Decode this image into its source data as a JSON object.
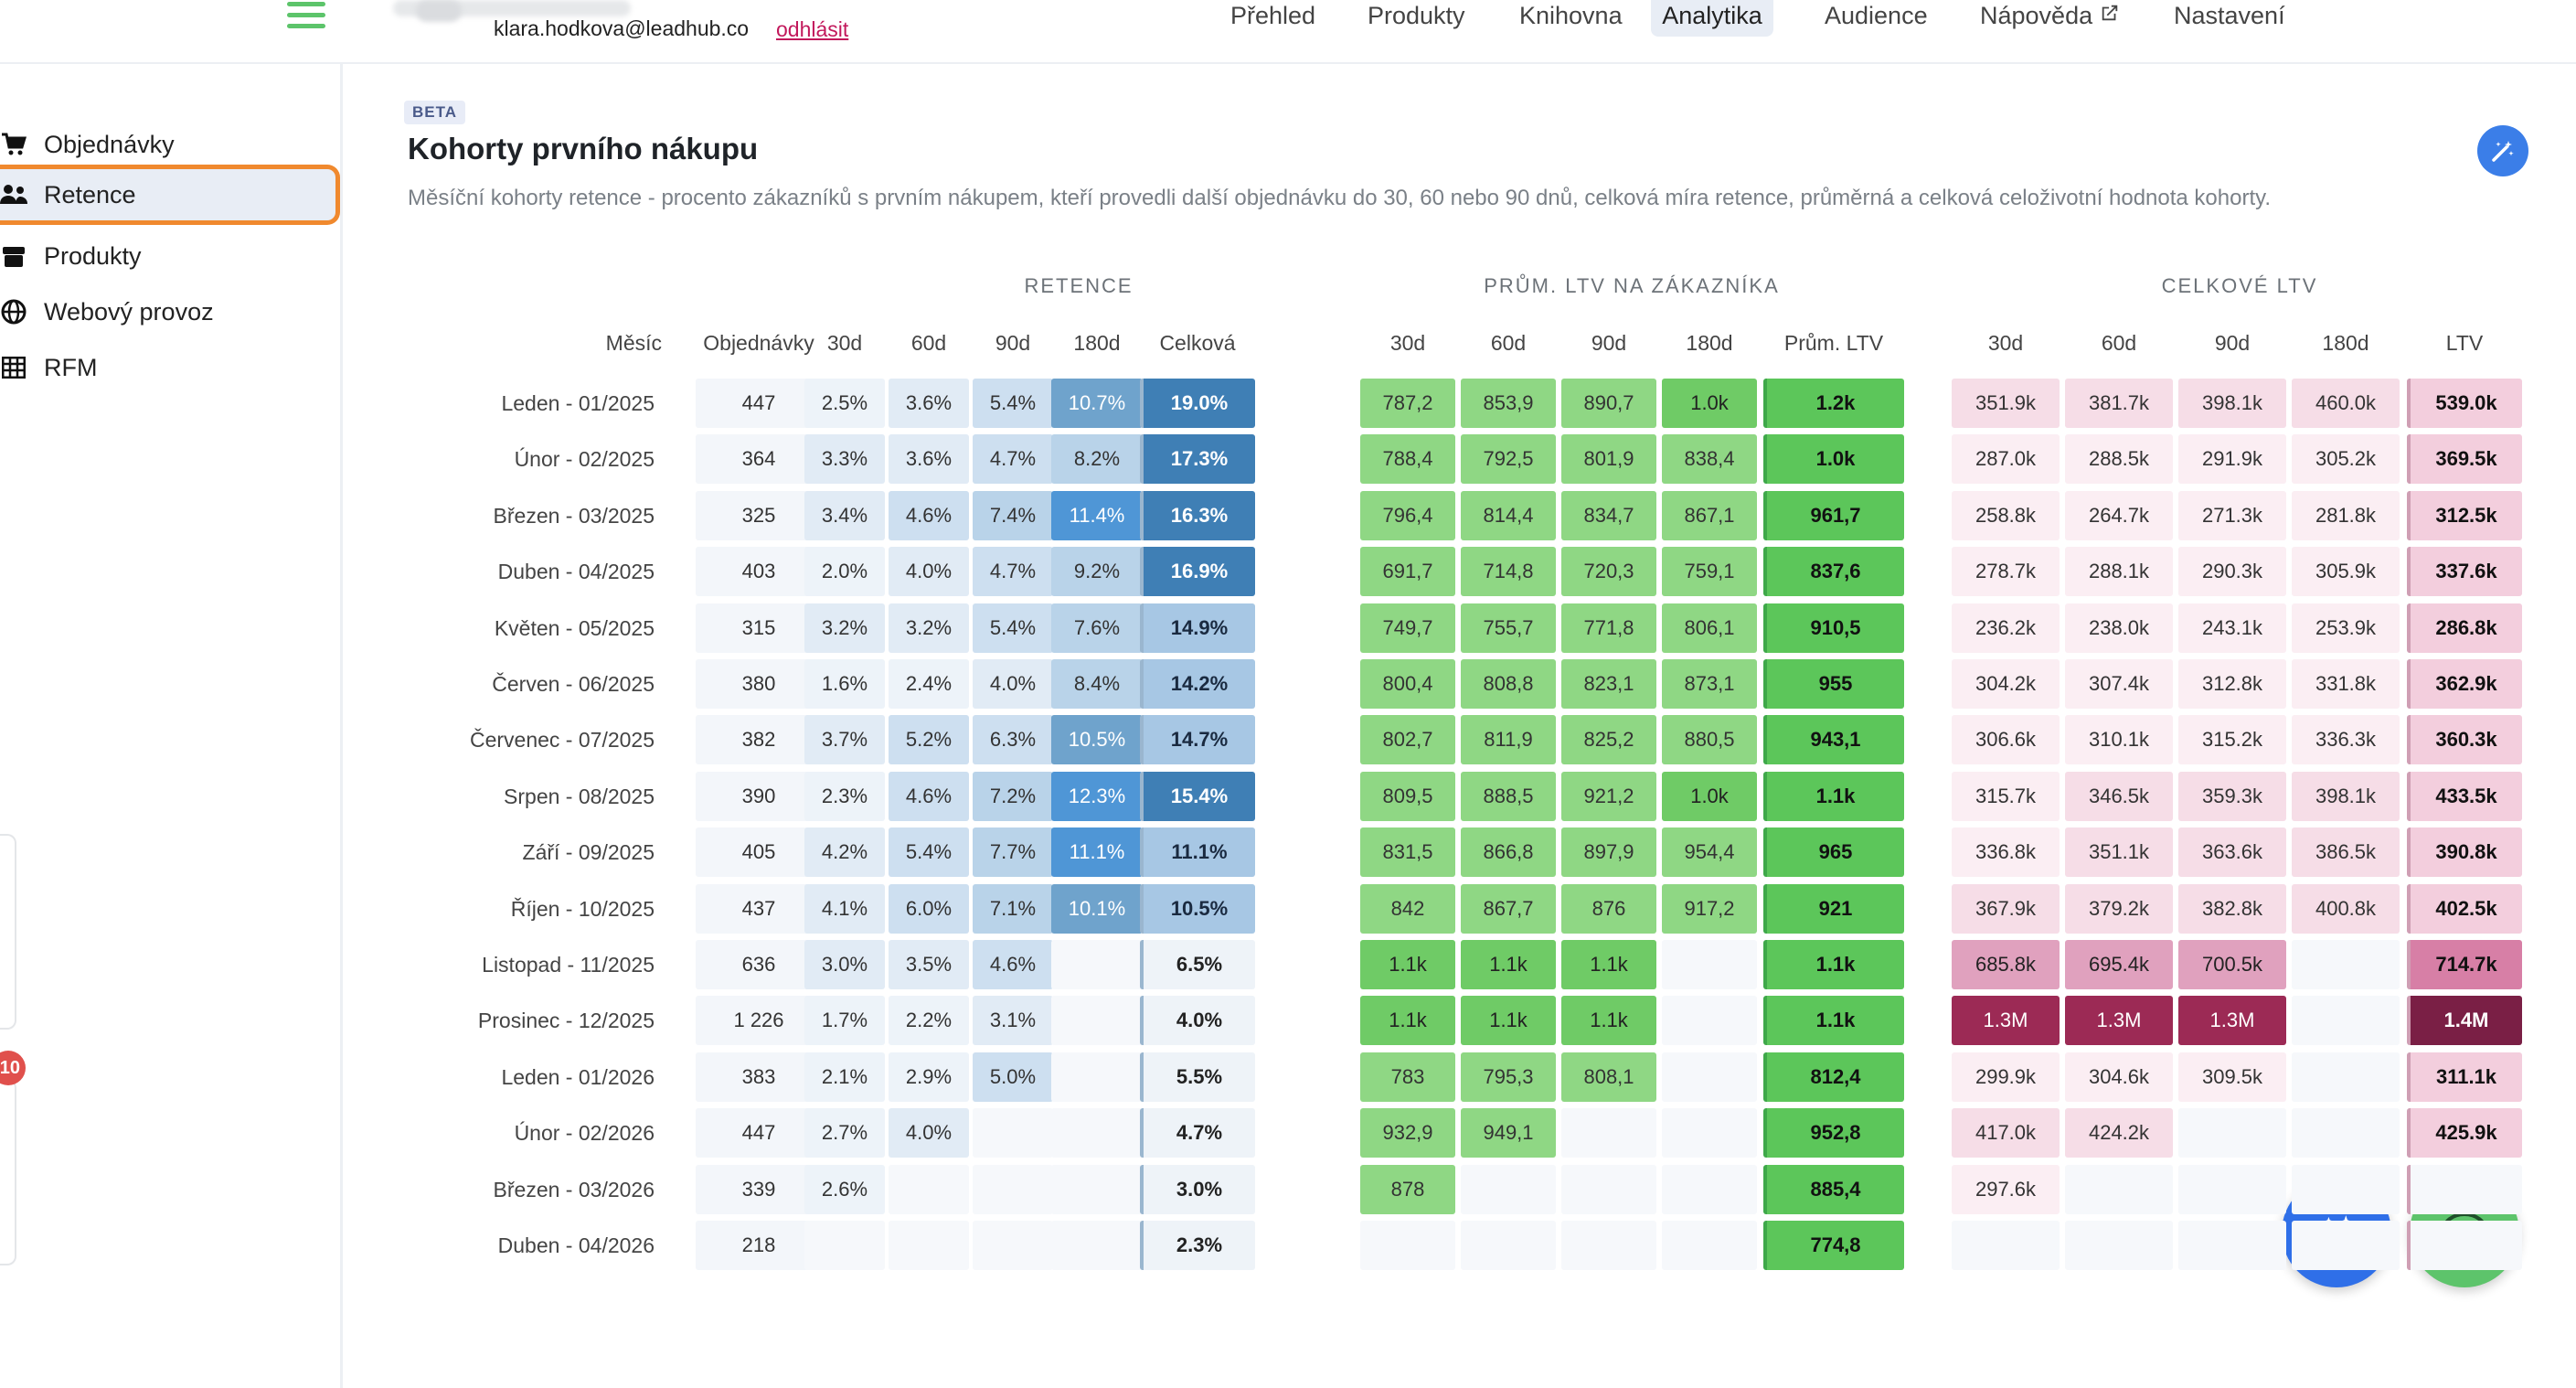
{
  "header": {
    "email": "klara.hodkova@leadhub.co",
    "logout": "odhlásit",
    "nav": [
      "Přehled",
      "Produkty",
      "Knihovna",
      "Analytika",
      "Audience",
      "Nápověda",
      "Nastavení"
    ],
    "active_nav": "Analytika"
  },
  "sidebar": {
    "items": [
      {
        "label": "Objednávky",
        "icon": "cart-icon"
      },
      {
        "label": "Retence",
        "icon": "users-icon"
      },
      {
        "label": "Produkty",
        "icon": "box-icon"
      },
      {
        "label": "Webový provoz",
        "icon": "globe-icon"
      },
      {
        "label": "RFM",
        "icon": "grid-icon"
      }
    ],
    "active": "Retence",
    "notification_count": "10"
  },
  "page": {
    "badge": "BETA",
    "title": "Kohorty prvního nákupu",
    "description": "Měsíční kohorty retence - procento zákazníků s prvním nákupem, kteří provedli další objednávku do 30, 60 nebo 90 dnů, celková míra retence, průměrná a celková celoživotní hodnota kohorty."
  },
  "table": {
    "groups": [
      "RETENCE",
      "PRŮM. LTV NA ZÁKAZNÍKA",
      "CELKOVÉ LTV"
    ],
    "headers": {
      "month": "Měsíc",
      "orders": "Objednávky",
      "retention": [
        "30d",
        "60d",
        "90d",
        "180d",
        "Celková"
      ],
      "avg_ltv": [
        "30d",
        "60d",
        "90d",
        "180d",
        "Prům. LTV"
      ],
      "total_ltv": [
        "30d",
        "60d",
        "90d",
        "180d",
        "LTV"
      ]
    },
    "rows": [
      {
        "month": "Leden - 01/2025",
        "orders": "447",
        "ret": [
          "2.5%",
          "3.6%",
          "5.4%",
          "10.7%",
          "19.0%"
        ],
        "avg": [
          "787,2",
          "853,9",
          "890,7",
          "1.0k",
          "1.2k"
        ],
        "tot": [
          "351.9k",
          "381.7k",
          "398.1k",
          "460.0k",
          "539.0k"
        ]
      },
      {
        "month": "Únor - 02/2025",
        "orders": "364",
        "ret": [
          "3.3%",
          "3.6%",
          "4.7%",
          "8.2%",
          "17.3%"
        ],
        "avg": [
          "788,4",
          "792,5",
          "801,9",
          "838,4",
          "1.0k"
        ],
        "tot": [
          "287.0k",
          "288.5k",
          "291.9k",
          "305.2k",
          "369.5k"
        ]
      },
      {
        "month": "Březen - 03/2025",
        "orders": "325",
        "ret": [
          "3.4%",
          "4.6%",
          "7.4%",
          "11.4%",
          "16.3%"
        ],
        "avg": [
          "796,4",
          "814,4",
          "834,7",
          "867,1",
          "961,7"
        ],
        "tot": [
          "258.8k",
          "264.7k",
          "271.3k",
          "281.8k",
          "312.5k"
        ]
      },
      {
        "month": "Duben - 04/2025",
        "orders": "403",
        "ret": [
          "2.0%",
          "4.0%",
          "4.7%",
          "9.2%",
          "16.9%"
        ],
        "avg": [
          "691,7",
          "714,8",
          "720,3",
          "759,1",
          "837,6"
        ],
        "tot": [
          "278.7k",
          "288.1k",
          "290.3k",
          "305.9k",
          "337.6k"
        ]
      },
      {
        "month": "Květen - 05/2025",
        "orders": "315",
        "ret": [
          "3.2%",
          "3.2%",
          "5.4%",
          "7.6%",
          "14.9%"
        ],
        "avg": [
          "749,7",
          "755,7",
          "771,8",
          "806,1",
          "910,5"
        ],
        "tot": [
          "236.2k",
          "238.0k",
          "243.1k",
          "253.9k",
          "286.8k"
        ]
      },
      {
        "month": "Červen - 06/2025",
        "orders": "380",
        "ret": [
          "1.6%",
          "2.4%",
          "4.0%",
          "8.4%",
          "14.2%"
        ],
        "avg": [
          "800,4",
          "808,8",
          "823,1",
          "873,1",
          "955"
        ],
        "tot": [
          "304.2k",
          "307.4k",
          "312.8k",
          "331.8k",
          "362.9k"
        ]
      },
      {
        "month": "Červenec - 07/2025",
        "orders": "382",
        "ret": [
          "3.7%",
          "5.2%",
          "6.3%",
          "10.5%",
          "14.7%"
        ],
        "avg": [
          "802,7",
          "811,9",
          "825,2",
          "880,5",
          "943,1"
        ],
        "tot": [
          "306.6k",
          "310.1k",
          "315.2k",
          "336.3k",
          "360.3k"
        ]
      },
      {
        "month": "Srpen - 08/2025",
        "orders": "390",
        "ret": [
          "2.3%",
          "4.6%",
          "7.2%",
          "12.3%",
          "15.4%"
        ],
        "avg": [
          "809,5",
          "888,5",
          "921,2",
          "1.0k",
          "1.1k"
        ],
        "tot": [
          "315.7k",
          "346.5k",
          "359.3k",
          "398.1k",
          "433.5k"
        ]
      },
      {
        "month": "Září - 09/2025",
        "orders": "405",
        "ret": [
          "4.2%",
          "5.4%",
          "7.7%",
          "11.1%",
          "11.1%"
        ],
        "avg": [
          "831,5",
          "866,8",
          "897,9",
          "954,4",
          "965"
        ],
        "tot": [
          "336.8k",
          "351.1k",
          "363.6k",
          "386.5k",
          "390.8k"
        ]
      },
      {
        "month": "Říjen - 10/2025",
        "orders": "437",
        "ret": [
          "4.1%",
          "6.0%",
          "7.1%",
          "10.1%",
          "10.5%"
        ],
        "avg": [
          "842",
          "867,7",
          "876",
          "917,2",
          "921"
        ],
        "tot": [
          "367.9k",
          "379.2k",
          "382.8k",
          "400.8k",
          "402.5k"
        ]
      },
      {
        "month": "Listopad - 11/2025",
        "orders": "636",
        "ret": [
          "3.0%",
          "3.5%",
          "4.6%",
          "",
          "6.5%"
        ],
        "avg": [
          "1.1k",
          "1.1k",
          "1.1k",
          "",
          "1.1k"
        ],
        "tot": [
          "685.8k",
          "695.4k",
          "700.5k",
          "",
          "714.7k"
        ]
      },
      {
        "month": "Prosinec - 12/2025",
        "orders": "1 226",
        "ret": [
          "1.7%",
          "2.2%",
          "3.1%",
          "",
          "4.0%"
        ],
        "avg": [
          "1.1k",
          "1.1k",
          "1.1k",
          "",
          "1.1k"
        ],
        "tot": [
          "1.3M",
          "1.3M",
          "1.3M",
          "",
          "1.4M"
        ]
      },
      {
        "month": "Leden - 01/2026",
        "orders": "383",
        "ret": [
          "2.1%",
          "2.9%",
          "5.0%",
          "",
          "5.5%"
        ],
        "avg": [
          "783",
          "795,3",
          "808,1",
          "",
          "812,4"
        ],
        "tot": [
          "299.9k",
          "304.6k",
          "309.5k",
          "",
          "311.1k"
        ]
      },
      {
        "month": "Únor - 02/2026",
        "orders": "447",
        "ret": [
          "2.7%",
          "4.0%",
          "",
          "",
          "4.7%"
        ],
        "avg": [
          "932,9",
          "949,1",
          "",
          "",
          "952,8"
        ],
        "tot": [
          "417.0k",
          "424.2k",
          "",
          "",
          "425.9k"
        ]
      },
      {
        "month": "Březen - 03/2026",
        "orders": "339",
        "ret": [
          "2.6%",
          "",
          "",
          "",
          "3.0%"
        ],
        "avg": [
          "878",
          "",
          "",
          "",
          "885,4"
        ],
        "tot": [
          "297.6k",
          "",
          "",
          "",
          ""
        ]
      },
      {
        "month": "Duben - 04/2026",
        "orders": "218",
        "ret": [
          "",
          "",
          "",
          "",
          "2.3%"
        ],
        "avg": [
          "",
          "",
          "",
          "",
          "774,8"
        ],
        "tot": [
          "",
          "",
          "",
          "",
          ""
        ]
      }
    ]
  },
  "colors": {
    "accent_blue": "#3b7ee8",
    "accent_green": "#5dc46b",
    "active_outline": "#f0892e"
  }
}
